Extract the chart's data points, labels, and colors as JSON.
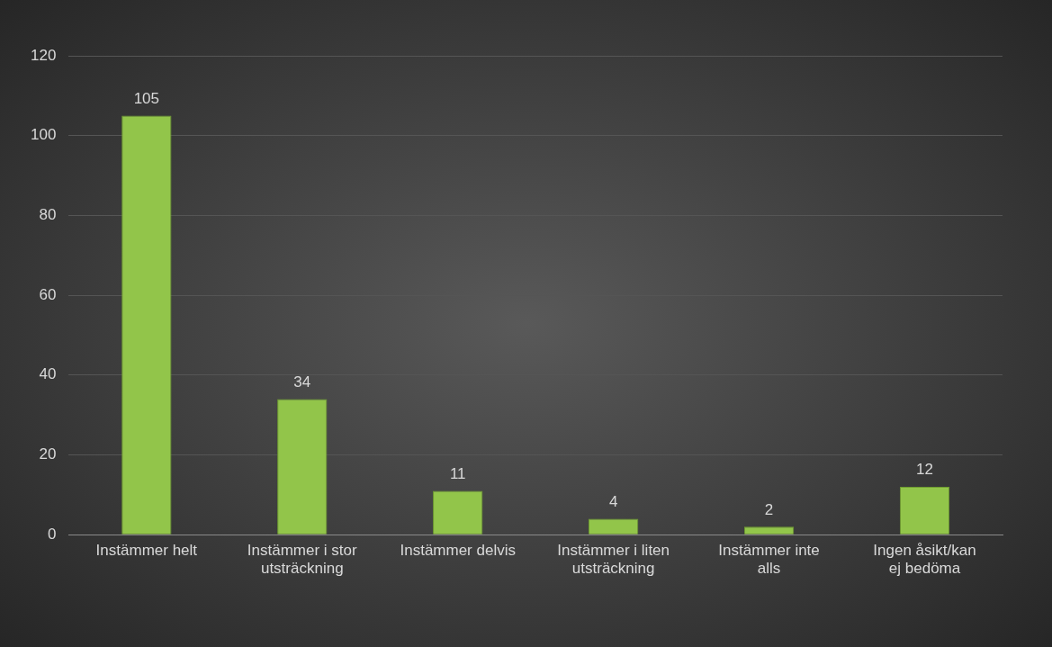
{
  "chart_data": {
    "type": "bar",
    "categories": [
      "Instämmer helt",
      "Instämmer i stor utsträckning",
      "Instämmer delvis",
      "Instämmer i liten utsträckning",
      "Instämmer inte alls",
      "Ingen åsikt/kan ej bedöma"
    ],
    "values": [
      105,
      34,
      11,
      4,
      2,
      12
    ],
    "color": "#92c54a",
    "ylim": [
      0,
      120
    ],
    "yticks": [
      0,
      20,
      40,
      60,
      80,
      100,
      120
    ],
    "grid": "y",
    "data_labels": true,
    "legend": false
  }
}
